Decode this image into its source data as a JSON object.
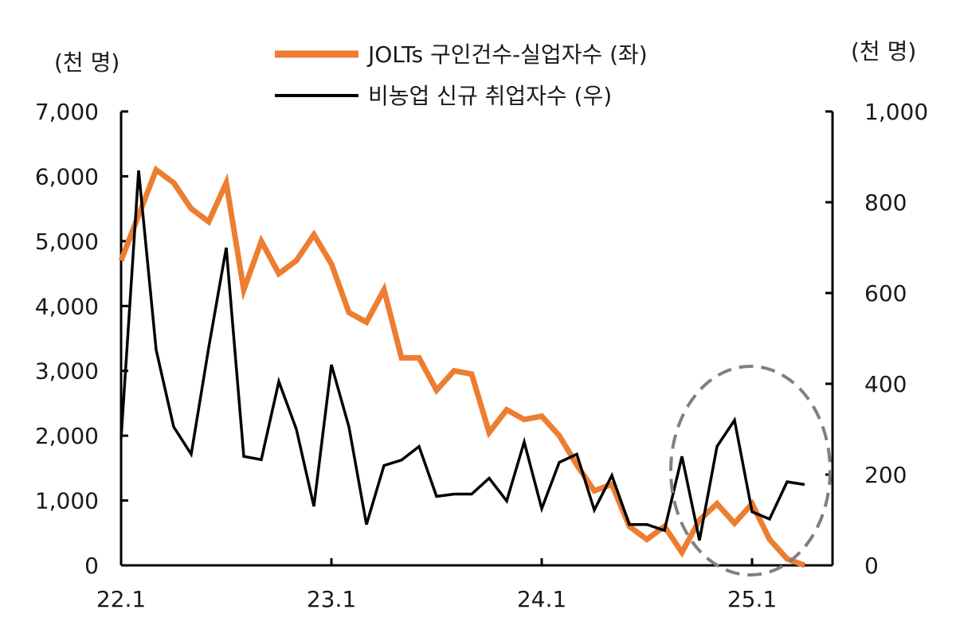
{
  "chart_data": {
    "type": "line",
    "units": {
      "left": "(천 명)",
      "right": "(천 명)"
    },
    "x_tick_labels": [
      "22.1",
      "23.1",
      "24.1",
      "25.1"
    ],
    "y_left": {
      "range": [
        0,
        7000
      ],
      "ticks": [
        "0",
        "1,000",
        "2,000",
        "3,000",
        "4,000",
        "5,000",
        "6,000",
        "7,000"
      ]
    },
    "y_right": {
      "range": [
        0,
        1000
      ],
      "ticks": [
        "0",
        "200",
        "400",
        "600",
        "800",
        "1,000"
      ]
    },
    "series": [
      {
        "name": "JOLTs 구인건수-실업자수 (좌)",
        "axis": "left",
        "color": "#ED7D31",
        "values": [
          4700,
          5400,
          6100,
          5900,
          5500,
          5300,
          5900,
          4250,
          5000,
          4500,
          4700,
          5100,
          4650,
          3900,
          3750,
          4250,
          3200,
          3200,
          2700,
          3000,
          2950,
          2050,
          2400,
          2250,
          2300,
          2000,
          1550,
          1150,
          1250,
          600,
          400,
          600,
          200,
          700,
          950,
          650,
          950,
          400,
          100,
          0
        ]
      },
      {
        "name": "비농업 신규 취업자수 (우)",
        "axis": "right",
        "color": "#000000",
        "values": [
          280,
          870,
          475,
          305,
          245,
          480,
          700,
          240,
          233,
          405,
          300,
          130,
          442,
          305,
          90,
          220,
          232,
          262,
          152,
          157,
          157,
          192,
          142,
          272,
          125,
          227,
          245,
          122,
          198,
          90,
          90,
          77,
          240,
          55,
          262,
          320,
          118,
          102,
          184,
          178
        ]
      }
    ],
    "annotation": "dashed-ellipse highlighting 2024.12–2025.4"
  }
}
